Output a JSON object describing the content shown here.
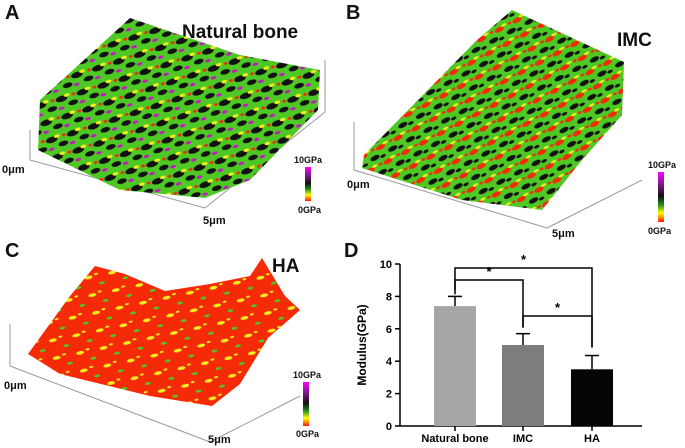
{
  "panels": [
    {
      "letter": "A",
      "title": "Natural bone",
      "axis_start": "0μm",
      "axis_end": "5μm",
      "scale_max": "10GPa",
      "scale_min": "0GPa"
    },
    {
      "letter": "B",
      "title": "IMC",
      "axis_start": "0μm",
      "axis_end": "5μm",
      "scale_max": "10GPa",
      "scale_min": "0GPa"
    },
    {
      "letter": "C",
      "title": "HA",
      "axis_start": "0μm",
      "axis_end": "5μm",
      "scale_max": "10GPa",
      "scale_min": "0GPa"
    },
    {
      "letter": "D"
    }
  ],
  "colors": {
    "natural_bone": "#a6a6a9",
    "imc": "#7d7d7f",
    "ha": "#050505",
    "map_green": "#4ec824",
    "map_red": "#f52a08",
    "map_yellow": "#f2ee1c",
    "map_black": "#111111",
    "map_magenta": "#c218c2"
  },
  "chart_data": {
    "type": "bar",
    "categories": [
      "Natural bone",
      "IMC",
      "HA"
    ],
    "values": [
      7.4,
      5.0,
      3.5
    ],
    "errors": [
      0.6,
      0.7,
      0.85
    ],
    "ylabel": "Modulus(GPa)",
    "ylim": [
      0,
      10
    ],
    "yticks": [
      "0",
      "2",
      "4",
      "6",
      "8",
      "10"
    ],
    "significance": [
      {
        "from": "Natural bone",
        "to": "HA",
        "label": "*"
      },
      {
        "from": "Natural bone",
        "to": "IMC",
        "label": "*"
      },
      {
        "from": "IMC",
        "to": "HA",
        "label": "*"
      }
    ]
  }
}
